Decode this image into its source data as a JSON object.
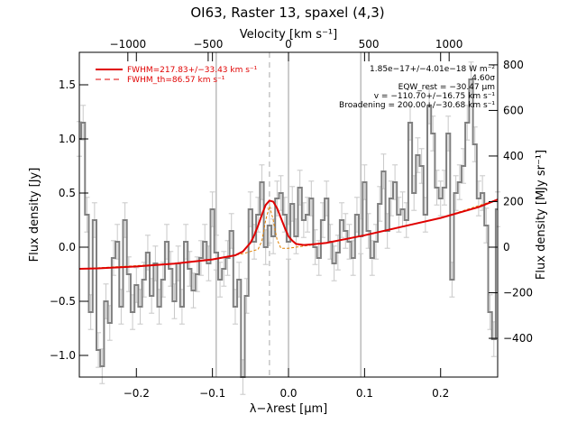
{
  "chart_data": {
    "type": "line",
    "title": "OI63, Raster 13, spaxel (4,3)",
    "xlabel": "λ−λrest [μm]",
    "x2label": "Velocity [km s⁻¹]",
    "ylabel": "Flux density [Jy]",
    "y2label": "Flux density [MJy sr⁻¹]",
    "xlim": [
      -0.275,
      0.275
    ],
    "ylim": [
      -1.2,
      1.8
    ],
    "x2lim": [
      -1302,
      1302
    ],
    "y2lim": [
      -570,
      855
    ],
    "x_ticks": [
      -0.2,
      -0.1,
      0.0,
      0.1,
      0.2
    ],
    "x_tick_labels": [
      "−0.2",
      "−0.1",
      "0.0",
      "0.1",
      "0.2"
    ],
    "y_ticks": [
      -1.0,
      -0.5,
      0.0,
      0.5,
      1.0,
      1.5
    ],
    "y_tick_labels": [
      "−1.0",
      "−0.5",
      "0.0",
      "0.5",
      "1.0",
      "1.5"
    ],
    "x2_ticks": [
      -1000,
      -500,
      0,
      500,
      1000
    ],
    "x2_tick_labels": [
      "−1000",
      "−500",
      "0",
      "500",
      "1000"
    ],
    "y2_ticks": [
      -400,
      -200,
      0,
      200,
      400,
      600,
      800
    ],
    "y2_tick_labels": [
      "−400",
      "−200",
      "0",
      "200",
      "400",
      "600",
      "800"
    ],
    "vertical_lines": [
      -0.095,
      0.0,
      0.095
    ],
    "peak_marker_x": -0.025,
    "legend": {
      "position": "top-left",
      "entries": [
        {
          "label": "FWHM=217.83+/−33.43 km s⁻¹",
          "style": "solid"
        },
        {
          "label": "FWHM_th=86.57 km s⁻¹",
          "style": "dashed"
        }
      ]
    },
    "annotations": [
      "1.85e−17+/−4.01e−18 W m⁻²",
      "4.60σ",
      "EQW_rest = −30.47 μm",
      "v = −110.70+/−16.75 km s⁻¹",
      "Broadening = 200.00+/−30.68 km s⁻¹"
    ],
    "series": [
      {
        "x": [
          -0.275,
          -0.27,
          -0.265,
          -0.26,
          -0.255,
          -0.25,
          -0.245,
          -0.24,
          -0.235,
          -0.23,
          -0.225,
          -0.22,
          -0.215,
          -0.21,
          -0.205,
          -0.2,
          -0.195,
          -0.19,
          -0.185,
          -0.18,
          -0.175,
          -0.17,
          -0.165,
          -0.16,
          -0.155,
          -0.15,
          -0.145,
          -0.14,
          -0.135,
          -0.13,
          -0.125,
          -0.12,
          -0.115,
          -0.11,
          -0.105,
          -0.1,
          -0.095,
          -0.09,
          -0.085,
          -0.08,
          -0.075,
          -0.07,
          -0.065,
          -0.06,
          -0.055,
          -0.05,
          -0.045,
          -0.04,
          -0.035,
          -0.03,
          -0.025,
          -0.02,
          -0.015,
          -0.01,
          -0.005,
          0.0,
          0.005,
          0.01,
          0.015,
          0.02,
          0.025,
          0.03,
          0.035,
          0.04,
          0.045,
          0.05,
          0.055,
          0.06,
          0.065,
          0.07,
          0.075,
          0.08,
          0.085,
          0.09,
          0.095,
          0.1,
          0.105,
          0.11,
          0.115,
          0.12,
          0.125,
          0.13,
          0.135,
          0.14,
          0.145,
          0.15,
          0.155,
          0.16,
          0.165,
          0.17,
          0.175,
          0.18,
          0.185,
          0.19,
          0.195,
          0.2,
          0.205,
          0.21,
          0.215,
          0.22,
          0.225,
          0.23,
          0.235,
          0.24,
          0.245,
          0.25,
          0.255,
          0.26,
          0.265,
          0.27,
          0.275
        ],
        "values": [
          1.0,
          1.15,
          0.3,
          -0.6,
          0.25,
          -0.95,
          -1.1,
          -0.5,
          -0.7,
          -0.1,
          0.05,
          -0.55,
          0.25,
          -0.25,
          -0.6,
          -0.35,
          -0.55,
          -0.3,
          -0.05,
          -0.45,
          -0.15,
          -0.55,
          -0.3,
          0.05,
          -0.2,
          -0.5,
          -0.15,
          -0.55,
          0.05,
          -0.2,
          -0.4,
          -0.25,
          -0.1,
          0.05,
          -0.15,
          0.35,
          -0.05,
          -0.3,
          -0.2,
          -0.1,
          0.15,
          -0.55,
          -0.3,
          -1.2,
          -0.45,
          0.35,
          0.05,
          0.3,
          0.6,
          0.0,
          0.2,
          0.1,
          0.45,
          0.5,
          0.3,
          0.05,
          0.4,
          0.1,
          0.55,
          0.25,
          0.3,
          0.45,
          0.0,
          -0.1,
          0.25,
          0.45,
          0.05,
          -0.15,
          -0.05,
          0.25,
          0.15,
          0.05,
          -0.1,
          0.3,
          0.1,
          0.6,
          0.15,
          -0.1,
          0.05,
          0.4,
          0.7,
          0.15,
          0.45,
          0.6,
          0.3,
          0.35,
          0.25,
          1.15,
          0.5,
          0.85,
          0.75,
          0.3,
          1.3,
          1.05,
          0.55,
          0.45,
          0.55,
          1.05,
          -0.3,
          0.5,
          0.6,
          0.75,
          1.15,
          1.55,
          0.95,
          0.45,
          0.5,
          0.2,
          -0.6,
          -0.85,
          0.35
        ]
      },
      {
        "name": "FWHM=217.83+/−33.43 km s⁻¹",
        "x": [
          -0.275,
          -0.25,
          -0.2,
          -0.15,
          -0.1,
          -0.07,
          -0.06,
          -0.05,
          -0.045,
          -0.04,
          -0.035,
          -0.03,
          -0.025,
          -0.02,
          -0.015,
          -0.01,
          -0.005,
          0.0,
          0.005,
          0.01,
          0.02,
          0.03,
          0.05,
          0.1,
          0.15,
          0.2,
          0.25,
          0.275
        ],
        "values": [
          -0.2,
          -0.196,
          -0.178,
          -0.152,
          -0.113,
          -0.075,
          -0.04,
          0.04,
          0.11,
          0.2,
          0.3,
          0.39,
          0.43,
          0.42,
          0.36,
          0.27,
          0.18,
          0.1,
          0.06,
          0.03,
          0.02,
          0.025,
          0.04,
          0.11,
          0.19,
          0.27,
          0.37,
          0.44
        ]
      },
      {
        "name": "FWHM_th=86.57 km s⁻¹",
        "x": [
          -0.275,
          -0.15,
          -0.1,
          -0.06,
          -0.04,
          -0.035,
          -0.03,
          -0.025,
          -0.02,
          -0.015,
          -0.01,
          0.0,
          0.05,
          0.1,
          0.2,
          0.275
        ],
        "values": [
          -0.2,
          -0.152,
          -0.113,
          -0.06,
          -0.02,
          0.06,
          0.25,
          0.38,
          0.25,
          0.07,
          -0.01,
          -0.01,
          0.04,
          0.11,
          0.27,
          0.44
        ]
      }
    ]
  }
}
